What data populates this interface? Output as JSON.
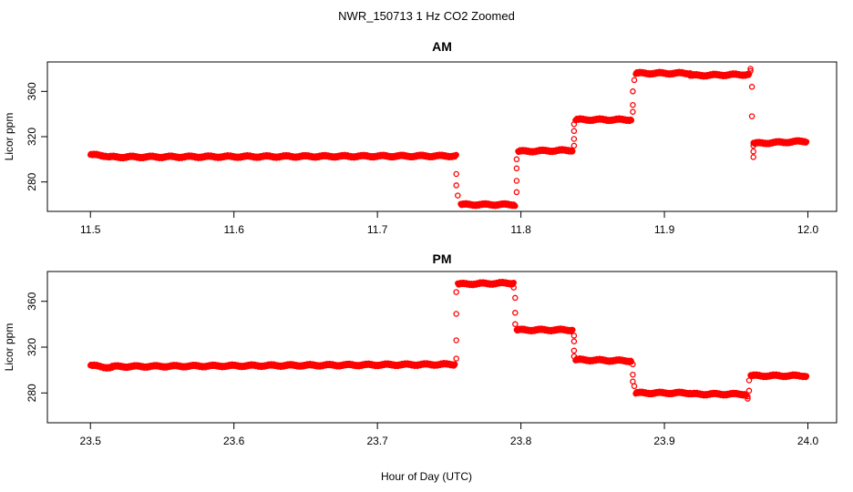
{
  "page": {
    "title": "NWR_150713  1 Hz CO2 Zoomed",
    "xlabel": "Hour of Day (UTC)"
  },
  "chart_data": [
    {
      "type": "scatter",
      "title": "AM",
      "ylabel": "Licor ppm",
      "xlim": [
        11.47,
        12.02
      ],
      "ylim": [
        254,
        386
      ],
      "xticks": [
        11.5,
        11.6,
        11.7,
        11.8,
        11.9,
        12.0
      ],
      "xtick_labels": [
        "11.5",
        "11.6",
        "11.7",
        "11.8",
        "11.9",
        "12.0"
      ],
      "yticks": [
        280,
        320,
        360
      ],
      "ytick_labels": [
        "280",
        "320",
        "360"
      ],
      "color": "#ff0000",
      "segments": [
        {
          "x": [
            11.5,
            11.512
          ],
          "y": [
            304,
            303
          ]
        },
        {
          "x": [
            11.512,
            11.755
          ],
          "y": [
            302,
            303
          ]
        },
        {
          "x": [
            11.758,
            11.796
          ],
          "y": [
            260,
            260
          ]
        },
        {
          "x": [
            11.798,
            11.836
          ],
          "y": [
            307,
            308
          ]
        },
        {
          "x": [
            11.838,
            11.877
          ],
          "y": [
            335,
            335
          ]
        },
        {
          "x": [
            11.88,
            11.918
          ],
          "y": [
            376,
            376
          ]
        },
        {
          "x": [
            11.918,
            11.959
          ],
          "y": [
            374,
            375
          ]
        },
        {
          "x": [
            11.962,
            11.999
          ],
          "y": [
            314,
            316
          ]
        }
      ],
      "points": [
        {
          "x": 11.755,
          "y": 287
        },
        {
          "x": 11.755,
          "y": 277
        },
        {
          "x": 11.756,
          "y": 268
        },
        {
          "x": 11.797,
          "y": 271
        },
        {
          "x": 11.797,
          "y": 281
        },
        {
          "x": 11.797,
          "y": 292
        },
        {
          "x": 11.797,
          "y": 300
        },
        {
          "x": 11.837,
          "y": 312
        },
        {
          "x": 11.837,
          "y": 318
        },
        {
          "x": 11.837,
          "y": 325
        },
        {
          "x": 11.837,
          "y": 331
        },
        {
          "x": 11.878,
          "y": 342
        },
        {
          "x": 11.878,
          "y": 348
        },
        {
          "x": 11.878,
          "y": 360
        },
        {
          "x": 11.879,
          "y": 370
        },
        {
          "x": 11.96,
          "y": 380
        },
        {
          "x": 11.96,
          "y": 378
        },
        {
          "x": 11.961,
          "y": 364
        },
        {
          "x": 11.961,
          "y": 338
        },
        {
          "x": 11.962,
          "y": 312
        },
        {
          "x": 11.962,
          "y": 307
        },
        {
          "x": 11.962,
          "y": 302
        }
      ]
    },
    {
      "type": "scatter",
      "title": "PM",
      "ylabel": "Licor ppm",
      "xlim": [
        23.47,
        24.02
      ],
      "ylim": [
        254,
        386
      ],
      "xticks": [
        23.5,
        23.6,
        23.7,
        23.8,
        23.9,
        24.0
      ],
      "xtick_labels": [
        "23.5",
        "23.6",
        "23.7",
        "23.8",
        "23.9",
        "24.0"
      ],
      "yticks": [
        280,
        320,
        360
      ],
      "ytick_labels": [
        "280",
        "320",
        "360"
      ],
      "color": "#ff0000",
      "segments": [
        {
          "x": [
            23.5,
            23.515
          ],
          "y": [
            304,
            302
          ]
        },
        {
          "x": [
            23.515,
            23.754
          ],
          "y": [
            303,
            305
          ]
        },
        {
          "x": [
            23.756,
            23.795
          ],
          "y": [
            375,
            376
          ]
        },
        {
          "x": [
            23.797,
            23.836
          ],
          "y": [
            335,
            335
          ]
        },
        {
          "x": [
            23.838,
            23.877
          ],
          "y": [
            309,
            308
          ]
        },
        {
          "x": [
            23.88,
            23.918
          ],
          "y": [
            280,
            280
          ]
        },
        {
          "x": [
            23.918,
            23.957
          ],
          "y": [
            279,
            279
          ]
        },
        {
          "x": [
            23.96,
            23.999
          ],
          "y": [
            295,
            295
          ]
        }
      ],
      "points": [
        {
          "x": 23.755,
          "y": 310
        },
        {
          "x": 23.755,
          "y": 326
        },
        {
          "x": 23.755,
          "y": 349
        },
        {
          "x": 23.755,
          "y": 368
        },
        {
          "x": 23.795,
          "y": 372
        },
        {
          "x": 23.796,
          "y": 363
        },
        {
          "x": 23.796,
          "y": 350
        },
        {
          "x": 23.796,
          "y": 340
        },
        {
          "x": 23.837,
          "y": 330
        },
        {
          "x": 23.837,
          "y": 325
        },
        {
          "x": 23.837,
          "y": 317
        },
        {
          "x": 23.837,
          "y": 312
        },
        {
          "x": 23.878,
          "y": 305
        },
        {
          "x": 23.878,
          "y": 296
        },
        {
          "x": 23.878,
          "y": 290
        },
        {
          "x": 23.879,
          "y": 286
        },
        {
          "x": 23.958,
          "y": 277
        },
        {
          "x": 23.958,
          "y": 275
        },
        {
          "x": 23.959,
          "y": 282
        },
        {
          "x": 23.959,
          "y": 291
        }
      ]
    }
  ]
}
